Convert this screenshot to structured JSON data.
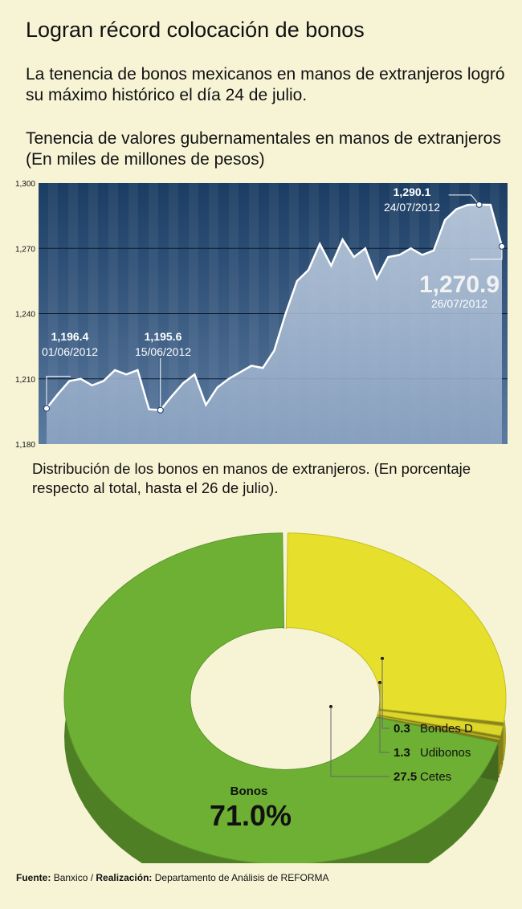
{
  "header": {
    "title": "Logran récord colocación de bonos",
    "subtitle": "La tenencia de bonos mexicanos en manos de extranjeros logró su máximo histórico el día 24 de julio."
  },
  "colors": {
    "background": "#f7f4d6",
    "line_panel_top": "#1b3d63",
    "line_panel_bottom": "#5b7aa0",
    "bonos_green": "#6eb034",
    "cetes_yellow": "#e6e02c"
  },
  "line_chart": {
    "title": "Tenencia de valores gubernamentales en manos de extranjeros (En miles de millones de pesos)"
  },
  "donut_chart": {
    "title": "Distribución de los bonos en manos de extranjeros. (En porcentaje respecto al total, hasta el 26 de julio)."
  },
  "footer": {
    "source_label": "Fuente:",
    "source_value": "Banxico /",
    "credit_label": "Realización:",
    "credit_value": "Departamento de Análisis de REFORMA"
  },
  "chart_data": [
    {
      "type": "area",
      "ylim": [
        1180,
        1300
      ],
      "yticks": [
        "1,180",
        "1,210",
        "1,240",
        "1,270",
        "1,300"
      ],
      "yvalues": [
        1180,
        1210,
        1240,
        1270,
        1300
      ],
      "grid": true,
      "series": [
        {
          "values": [
            1196.4,
            1203,
            1209,
            1210,
            1207,
            1209,
            1214,
            1212,
            1214,
            1196,
            1195.6,
            1202,
            1208,
            1212,
            1198,
            1206,
            1210,
            1213,
            1216,
            1215,
            1223,
            1240,
            1255,
            1260,
            1272,
            1262,
            1274,
            1266,
            1270,
            1256,
            1266,
            1267,
            1270,
            1267,
            1269,
            1283,
            1288,
            1290,
            1290.1,
            1290,
            1270.9
          ]
        }
      ],
      "annotations": [
        {
          "index": 0,
          "value": "1,196.4",
          "date": "01/06/2012"
        },
        {
          "index": 10,
          "value": "1,195.6",
          "date": "15/06/2012"
        },
        {
          "index": 38,
          "value": "1,290.1",
          "date": "24/07/2012"
        },
        {
          "index": 40,
          "value": "1,270.9",
          "date": "26/07/2012"
        }
      ]
    },
    {
      "type": "pie",
      "slices": [
        {
          "label": "Bonos",
          "value": 71.0,
          "display": "71.0%",
          "color": "#6eb034"
        },
        {
          "label": "Cetes",
          "value": 27.5,
          "display": "27.5",
          "color": "#e6e02c"
        },
        {
          "label": "Udibonos",
          "value": 1.3,
          "display": "1.3",
          "color": "#dcd62a"
        },
        {
          "label": "Bondes D",
          "value": 0.3,
          "display": "0.3",
          "color": "#d2cc28"
        }
      ]
    }
  ]
}
